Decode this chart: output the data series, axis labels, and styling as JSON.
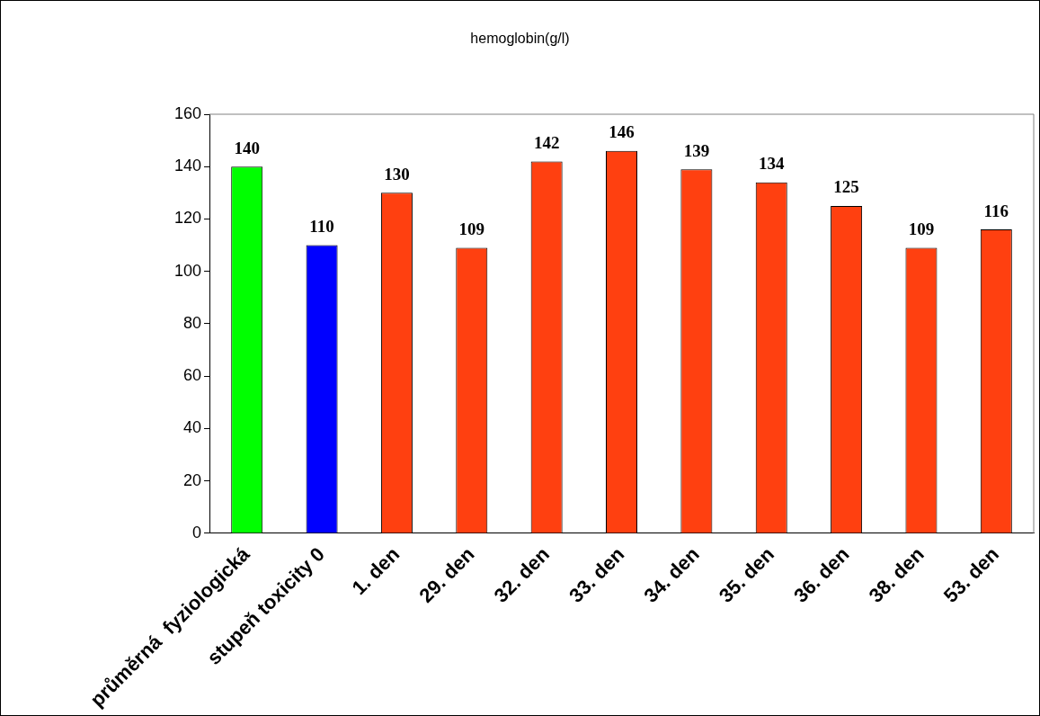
{
  "chart_data": {
    "type": "bar",
    "title": "hemoglobin(g/l)",
    "categories": [
      "průměrná  fyziologická",
      "stupeň toxicity 0",
      "1. den",
      "29. den",
      "32. den",
      "33. den",
      "34. den",
      "35. den",
      "36. den",
      "38. den",
      "53. den"
    ],
    "values": [
      140,
      110,
      130,
      109,
      142,
      146,
      139,
      134,
      125,
      109,
      116
    ],
    "colors": [
      "#00ff00",
      "#0000ff",
      "#ff4010",
      "#ff4010",
      "#ff4010",
      "#ff4010",
      "#ff4010",
      "#ff4010",
      "#ff4010",
      "#ff4010",
      "#ff4010"
    ],
    "ylim": [
      0,
      160
    ],
    "yticks": [
      0,
      20,
      40,
      60,
      80,
      100,
      120,
      140,
      160
    ],
    "data_labels": true
  }
}
